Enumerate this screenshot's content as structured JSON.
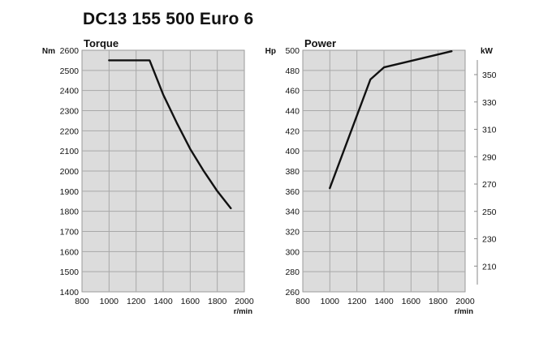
{
  "header": {
    "title": "DC13 155 500 Euro 6"
  },
  "chart_data": [
    {
      "type": "line",
      "title": "Torque",
      "ylabel": "Nm",
      "xlabel": "r/min",
      "xlim": [
        800,
        2000
      ],
      "ylim": [
        1400,
        2600
      ],
      "xticks": [
        800,
        1000,
        1200,
        1400,
        1600,
        1800,
        2000
      ],
      "yticks": [
        1400,
        1500,
        1600,
        1700,
        1800,
        1900,
        2000,
        2100,
        2200,
        2300,
        2400,
        2500,
        2600
      ],
      "grid": true,
      "series": [
        {
          "x": [
            1000,
            1100,
            1200,
            1300,
            1400,
            1500,
            1600,
            1700,
            1800,
            1900
          ],
          "y": [
            2550,
            2550,
            2550,
            2550,
            2380,
            2240,
            2110,
            2000,
            1900,
            1815
          ]
        }
      ]
    },
    {
      "type": "line",
      "title": "Power",
      "ylabel": "Hp",
      "y2label": "kW",
      "xlabel": "r/min",
      "xlim": [
        800,
        2000
      ],
      "ylim": [
        260,
        500
      ],
      "y2lim": [
        191.2,
        367.8
      ],
      "xticks": [
        800,
        1000,
        1200,
        1400,
        1600,
        1800,
        2000
      ],
      "yticks": [
        260,
        280,
        300,
        320,
        340,
        360,
        380,
        400,
        420,
        440,
        460,
        480,
        500
      ],
      "y2ticks": [
        210,
        230,
        250,
        270,
        290,
        310,
        330,
        350
      ],
      "grid": true,
      "series": [
        {
          "x": [
            1000,
            1300,
            1400,
            1900
          ],
          "y": [
            363,
            471,
            483,
            499
          ]
        }
      ]
    }
  ]
}
